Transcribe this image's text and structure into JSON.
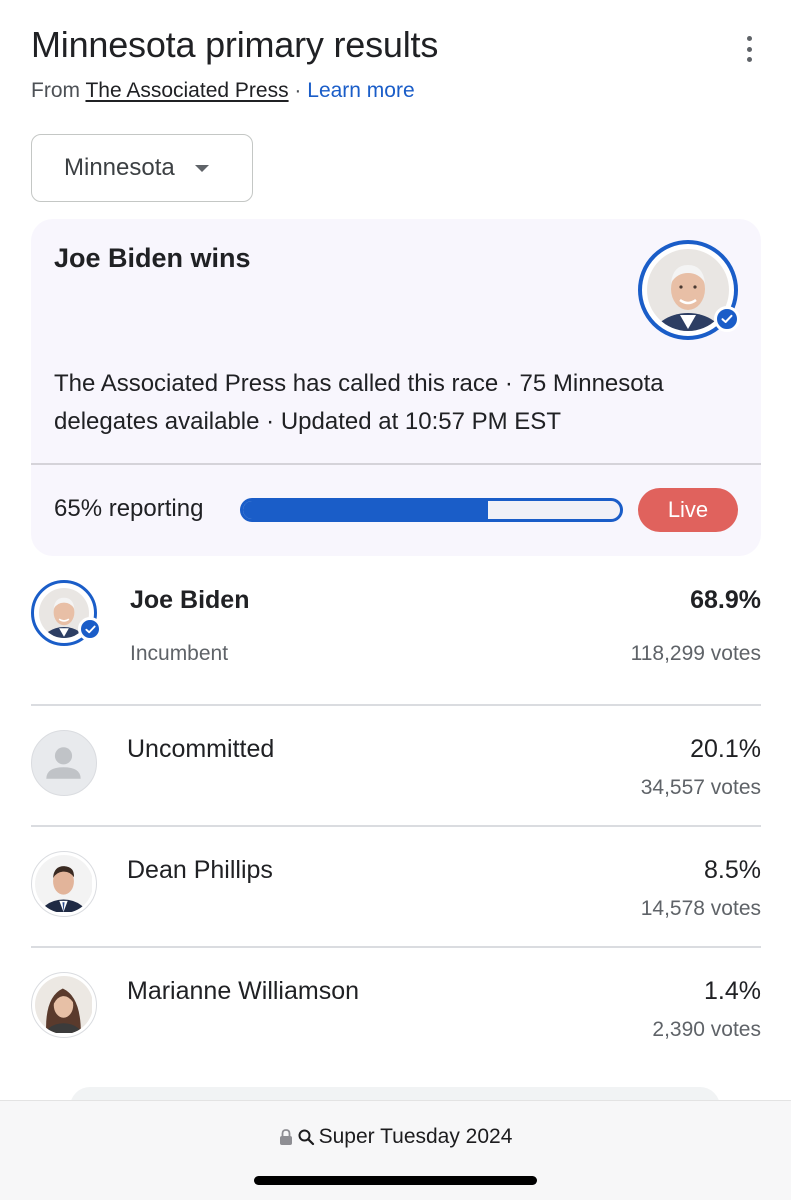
{
  "header": {
    "title": "Minnesota primary results",
    "source_prefix": "From",
    "source_name": "The Associated Press",
    "source_sep": "·",
    "learn_more": "Learn more"
  },
  "state_selector": {
    "value": "Minnesota"
  },
  "result_card": {
    "winner_text": "Joe Biden wins",
    "call_text": "The Associated Press has called this race · 75 Minnesota delegates available · Updated at 10:57 PM EST",
    "reporting_text": "65% reporting",
    "reporting_fraction": 0.65,
    "live_label": "Live"
  },
  "candidates": [
    {
      "name": "Joe Biden",
      "status": "Incumbent",
      "percent": "68.9%",
      "votes": "118,299 votes",
      "winner": true
    },
    {
      "name": "Uncommitted",
      "status": "",
      "percent": "20.1%",
      "votes": "34,557 votes",
      "winner": false
    },
    {
      "name": "Dean Phillips",
      "status": "",
      "percent": "8.5%",
      "votes": "14,578 votes",
      "winner": false
    },
    {
      "name": "Marianne Williamson",
      "status": "",
      "percent": "1.4%",
      "votes": "2,390 votes",
      "winner": false
    }
  ],
  "browser": {
    "address": "Super Tuesday 2024",
    "icons": [
      "lock-icon",
      "search-icon"
    ]
  },
  "colors": {
    "accent": "#1a5dc8",
    "live": "#e0625d",
    "card_bg": "#f8f6fd"
  }
}
